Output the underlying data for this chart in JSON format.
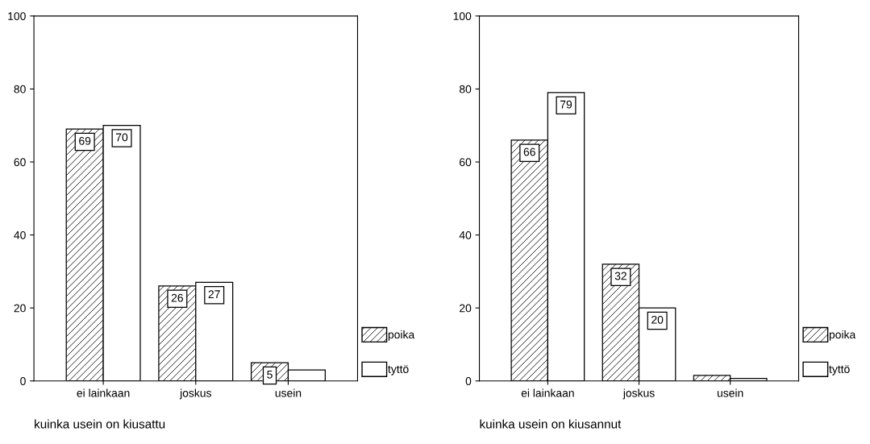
{
  "chart_data": [
    {
      "type": "bar",
      "xlabel": "kuinka usein on kiusattu",
      "categories": [
        "ei lainkaan",
        "joskus",
        "usein"
      ],
      "ylim": [
        0,
        100
      ],
      "yticks": [
        0,
        20,
        40,
        60,
        80,
        100
      ],
      "legend": "bottom right",
      "grid": false,
      "series": [
        {
          "name": "poika",
          "color": "#000000",
          "values": [
            69,
            26,
            5
          ],
          "value_labels": [
            "69",
            "26",
            "5"
          ]
        },
        {
          "name": "tyttö",
          "color": "#ffffff",
          "values": [
            70,
            27,
            3
          ],
          "value_labels": [
            "70",
            "27",
            null
          ]
        }
      ]
    },
    {
      "type": "bar",
      "xlabel": "kuinka usein on kiusannut",
      "categories": [
        "ei lainkaan",
        "joskus",
        "usein"
      ],
      "ylim": [
        0,
        100
      ],
      "yticks": [
        0,
        20,
        40,
        60,
        80,
        100
      ],
      "legend": "bottom right",
      "grid": false,
      "series": [
        {
          "name": "poika",
          "color": "#000000",
          "values": [
            66,
            32,
            1.5
          ],
          "value_labels": [
            "66",
            "32",
            null
          ]
        },
        {
          "name": "tyttö",
          "color": "#ffffff",
          "values": [
            79,
            20,
            0.7
          ],
          "value_labels": [
            "79",
            "20",
            null
          ]
        }
      ]
    }
  ]
}
